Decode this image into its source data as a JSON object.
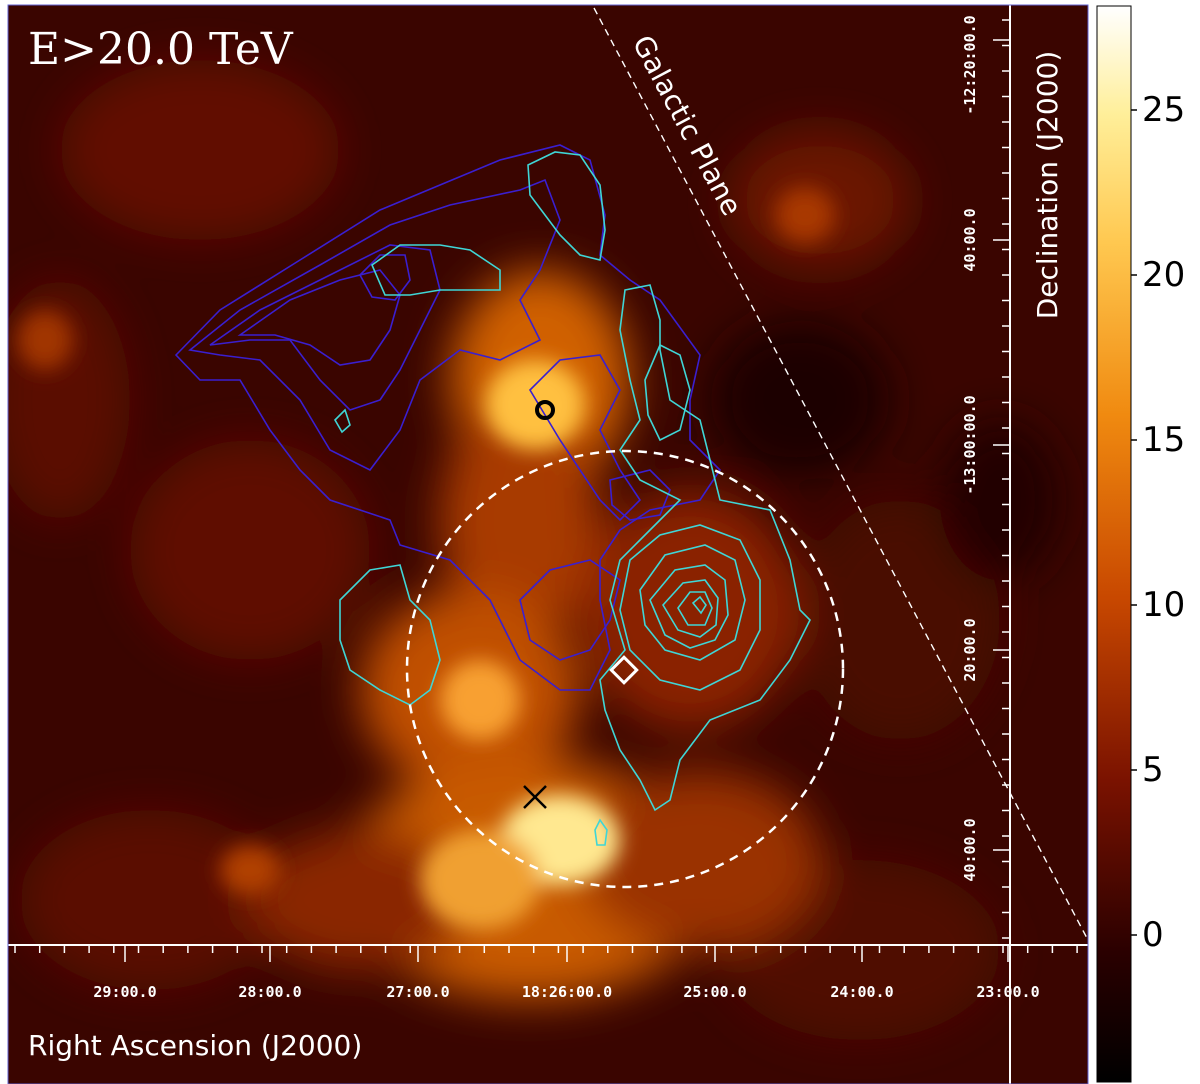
{
  "chart_data": {
    "type": "heatmap",
    "title": "E>20.0 TeV",
    "annotation": "Galactic Plane",
    "xlabel": "Right Ascension (J2000)",
    "ylabel": "Declination (J2000)",
    "x_ticks": [
      "29:00.0",
      "28:00.0",
      "27:00.0",
      "18:26:00.0",
      "25:00.0",
      "24:00.0",
      "23:00.0"
    ],
    "y_ticks": [
      "-12:20:00.0",
      "40:00.0",
      "-13:00:00.0",
      "20:00.0",
      "40:00.0"
    ],
    "colorbar": {
      "ticks": [
        "25",
        "20",
        "15",
        "10",
        "5",
        "0"
      ],
      "range": [
        -4,
        28
      ]
    },
    "colormap": "afmhot",
    "overlays": {
      "circle": "dashed white circle (region of interest)",
      "markers": [
        {
          "symbol": "circle",
          "color": "#000000"
        },
        {
          "symbol": "diamond",
          "color": "#ffffff"
        },
        {
          "symbol": "cross",
          "color": "#000000"
        }
      ],
      "contour_sets": [
        {
          "color": "#3a1fd0"
        },
        {
          "color": "#3fd6d6"
        }
      ]
    },
    "colors": {
      "contour_blue": "#3a1fd0",
      "contour_cyan": "#3fd6d6",
      "axes": "#ffffff"
    }
  }
}
